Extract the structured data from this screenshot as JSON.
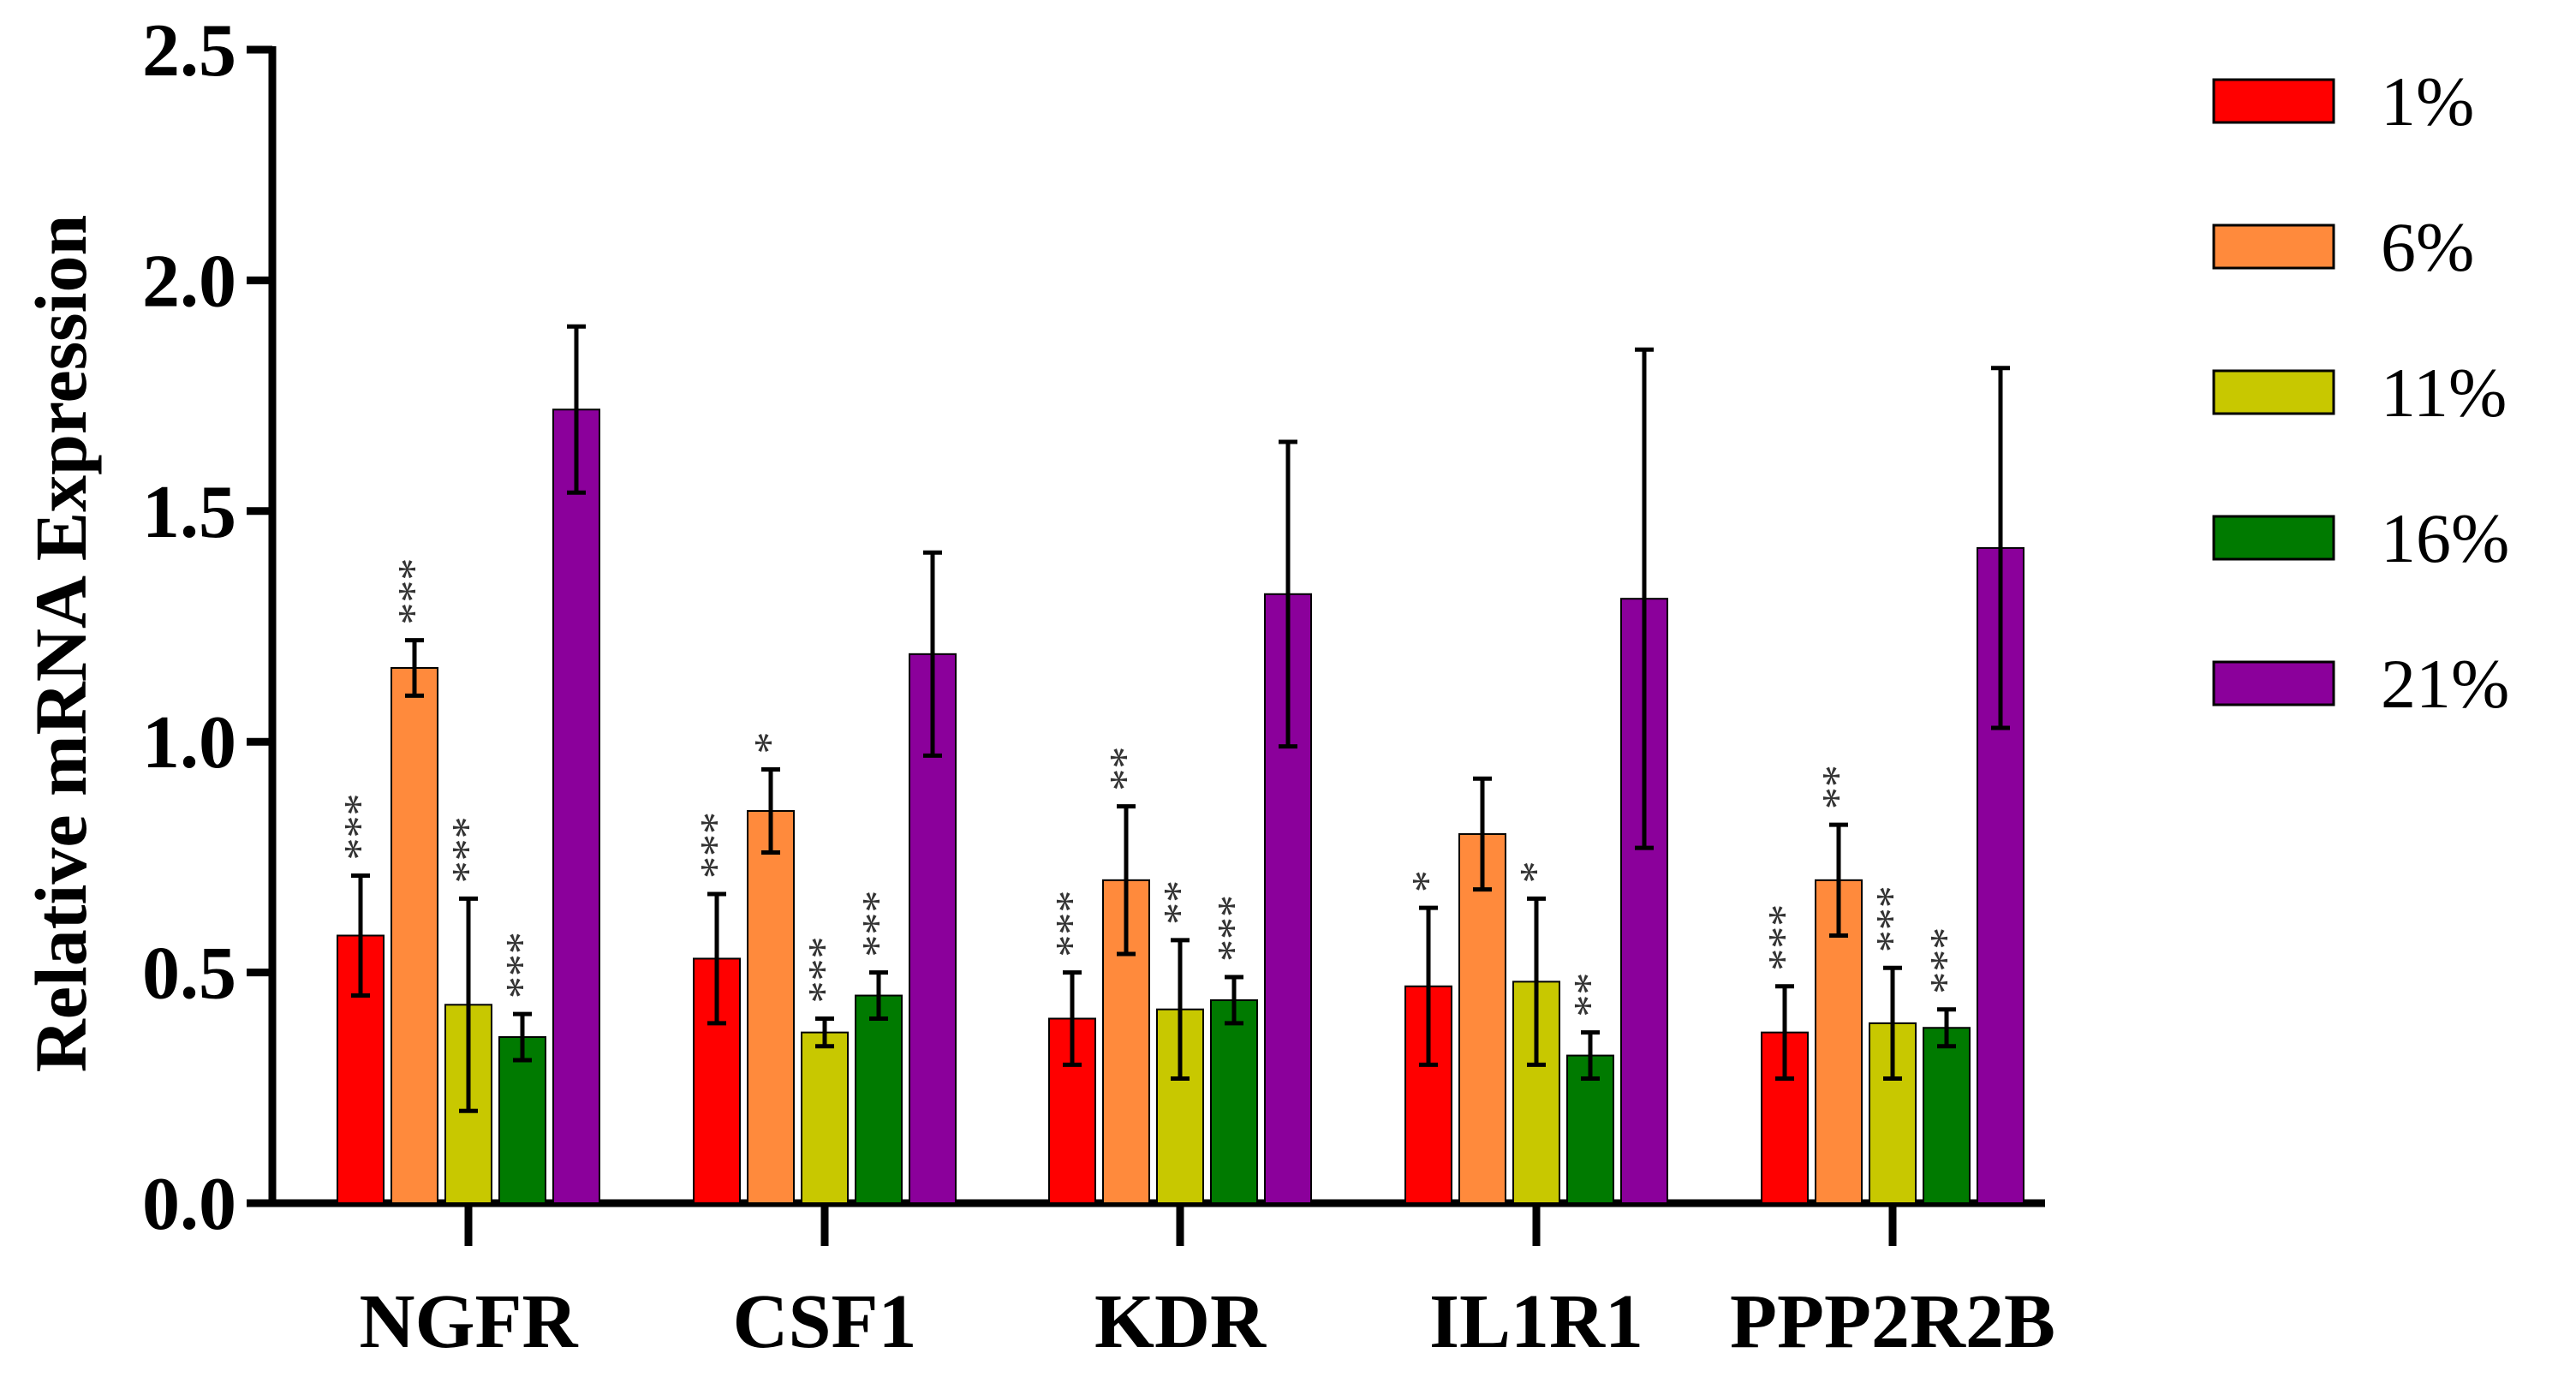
{
  "chart_data": {
    "type": "bar",
    "title": "",
    "xlabel": "",
    "ylabel": "Relative mRNA Expression",
    "ylim": [
      0,
      2.5
    ],
    "yticks": [
      "0.0",
      "0.5",
      "1.0",
      "1.5",
      "2.0",
      "2.5"
    ],
    "grid": false,
    "legend_position": "right",
    "categories": [
      "NGFR",
      "CSF1",
      "KDR",
      "IL1R1",
      "PPP2R2B"
    ],
    "series": [
      {
        "name": "1%",
        "color": "#ff0000",
        "values": [
          0.58,
          0.53,
          0.4,
          0.47,
          0.37
        ],
        "errors": [
          0.13,
          0.14,
          0.1,
          0.17,
          0.1
        ],
        "significance": [
          "***",
          "***",
          "***",
          "*",
          "***"
        ]
      },
      {
        "name": "6%",
        "color": "#ff8a3c",
        "values": [
          1.16,
          0.85,
          0.7,
          0.8,
          0.7
        ],
        "errors": [
          0.06,
          0.09,
          0.16,
          0.12,
          0.12
        ],
        "significance": [
          "***",
          "*",
          "**",
          "",
          "**"
        ]
      },
      {
        "name": "11%",
        "color": "#c8c800",
        "values": [
          0.43,
          0.37,
          0.42,
          0.48,
          0.39
        ],
        "errors": [
          0.23,
          0.03,
          0.15,
          0.18,
          0.12
        ],
        "significance": [
          "***",
          "***",
          "**",
          "*",
          "***"
        ]
      },
      {
        "name": "16%",
        "color": "#007a00",
        "values": [
          0.36,
          0.45,
          0.44,
          0.32,
          0.38
        ],
        "errors": [
          0.05,
          0.05,
          0.05,
          0.05,
          0.04
        ],
        "significance": [
          "***",
          "***",
          "***",
          "**",
          "***"
        ]
      },
      {
        "name": "21%",
        "color": "#8b009b",
        "values": [
          1.72,
          1.19,
          1.32,
          1.31,
          1.42
        ],
        "errors": [
          0.18,
          0.22,
          0.33,
          0.54,
          0.39
        ],
        "significance": [
          "",
          "",
          "",
          "",
          ""
        ]
      }
    ]
  }
}
